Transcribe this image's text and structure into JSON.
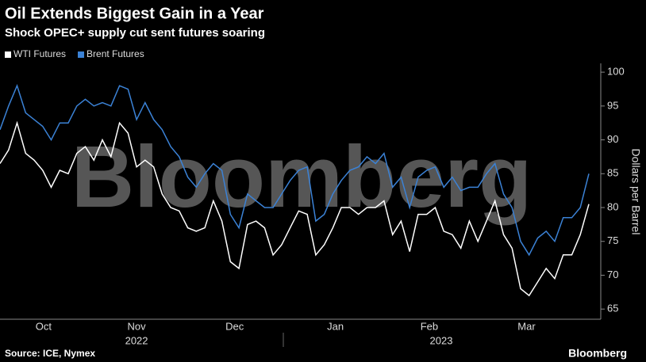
{
  "chart_data": {
    "type": "line",
    "title": "Oil Extends Biggest Gain in a Year",
    "subtitle": "Shock OPEC+ supply cut sent futures soaring",
    "watermark": "Bloomberg",
    "source": "Source: ICE, Nymex",
    "brand": "Bloomberg",
    "ylabel": "Dollars per Barrel",
    "series": [
      {
        "name": "WTI Futures",
        "color": "#ffffff",
        "values": [
          86.5,
          88.5,
          92.5,
          88,
          87,
          85.5,
          83,
          85.5,
          85,
          88,
          89,
          87,
          90,
          87.5,
          92.5,
          91,
          86,
          87,
          86,
          82,
          80,
          79.5,
          77,
          76.5,
          77,
          81,
          78,
          72,
          71,
          77.5,
          78,
          77,
          73,
          74.5,
          77,
          79.5,
          79,
          73,
          74.5,
          77,
          80,
          80,
          79,
          80,
          80,
          81,
          76,
          78,
          73.5,
          79,
          79,
          80,
          76.5,
          76,
          74,
          78,
          75,
          78,
          81,
          76,
          74,
          68,
          67,
          69,
          71,
          69.5,
          73,
          73,
          76,
          80.5
        ]
      },
      {
        "name": "Brent Futures",
        "color": "#3b82d6",
        "values": [
          91.5,
          95,
          98,
          94,
          93,
          92,
          90,
          92.5,
          92.5,
          95,
          96,
          95,
          95.5,
          95,
          98,
          97.5,
          93,
          95.5,
          93,
          91.5,
          89,
          87.5,
          84.5,
          83,
          85,
          86.5,
          85.5,
          79,
          77,
          82,
          81,
          80,
          80,
          82,
          84,
          85.5,
          86,
          78,
          79,
          82,
          84,
          85.5,
          86,
          87.5,
          86.5,
          88,
          83,
          84.5,
          80,
          84.5,
          85.5,
          86,
          83,
          84.5,
          82.5,
          83,
          83,
          85,
          86.5,
          82,
          80,
          75,
          73,
          75.5,
          76.5,
          75,
          78.5,
          78.5,
          80,
          85
        ]
      }
    ],
    "xlim": [
      0,
      69
    ],
    "xticks": [
      {
        "value": 5.1,
        "label": "Oct"
      },
      {
        "value": 16,
        "label": "Nov"
      },
      {
        "value": 27.5,
        "label": "Dec"
      },
      {
        "value": 39.3,
        "label": "Jan"
      },
      {
        "value": 50.3,
        "label": "Feb"
      },
      {
        "value": 61.7,
        "label": "Mar"
      }
    ],
    "year_labels": [
      {
        "value": 16,
        "label": "2022"
      },
      {
        "value": 51.7,
        "label": "2023"
      }
    ],
    "ylim": [
      63.5,
      101.3
    ],
    "yticks": [
      65,
      70,
      75,
      80,
      85,
      90,
      95,
      100
    ],
    "grid": false
  }
}
